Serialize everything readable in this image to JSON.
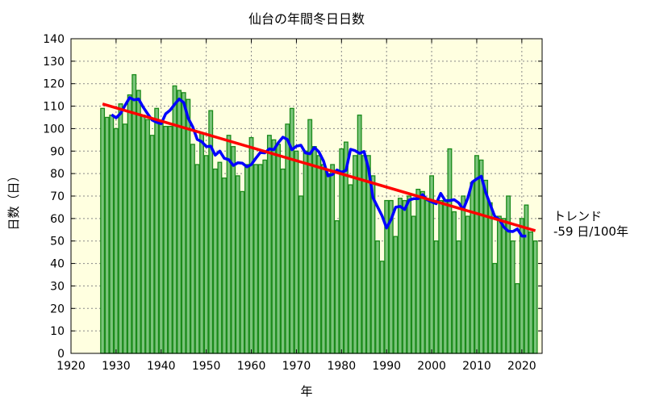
{
  "chart_data": {
    "type": "bar",
    "title": "仙台の年間冬日日数",
    "xlabel": "年",
    "ylabel": "日数（日）",
    "xlim": [
      1920,
      2024.5
    ],
    "ylim": [
      0,
      140
    ],
    "xticks": [
      1920,
      1930,
      1940,
      1950,
      1960,
      1970,
      1980,
      1990,
      2000,
      2010,
      2020
    ],
    "yticks": [
      0,
      10,
      20,
      30,
      40,
      50,
      60,
      70,
      80,
      90,
      100,
      110,
      120,
      130,
      140
    ],
    "grid": true,
    "start_year": 1927,
    "values": [
      109,
      105,
      106,
      100,
      111,
      102,
      115,
      124,
      117,
      106,
      104,
      97,
      109,
      103,
      101,
      101,
      119,
      117,
      116,
      113,
      93,
      84,
      98,
      88,
      108,
      82,
      85,
      78,
      97,
      92,
      79,
      72,
      84,
      96,
      84,
      84,
      86,
      97,
      95,
      93,
      82,
      102,
      109,
      90,
      70,
      90,
      104,
      92,
      88,
      84,
      80,
      84,
      59,
      91,
      94,
      75,
      88,
      106,
      88,
      88,
      79,
      50,
      41,
      68,
      68,
      52,
      69,
      68,
      70,
      61,
      73,
      72,
      68,
      79,
      50,
      68,
      68,
      91,
      63,
      50,
      70,
      61,
      76,
      88,
      86,
      77,
      67,
      40,
      61,
      60,
      70,
      50,
      31,
      60,
      66,
      54,
      50
    ],
    "moving_average_window": 5,
    "trend": {
      "x": [
        1927,
        2023
      ],
      "y": [
        111,
        54.6
      ],
      "label_line1": "トレンド",
      "label_line2": "-59 日/100年"
    },
    "colors": {
      "bar_fill": "#7bc47b",
      "bar_edge": "#1a8a1a",
      "moving_average": "#0000ff",
      "trend": "#ff0000",
      "plot_bg": "#ffffe0"
    }
  }
}
